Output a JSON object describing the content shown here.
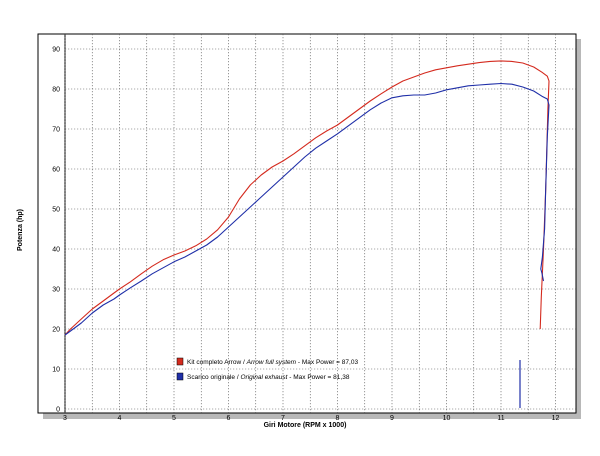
{
  "chart_data": {
    "type": "line",
    "xlabel": "Giri Motore (RPM x 1000)",
    "ylabel": "Potenza (hp)",
    "xlim": [
      2.9,
      12.0
    ],
    "ylim": [
      0,
      92
    ],
    "x_ticks": [
      "3",
      "4",
      "5",
      "6",
      "7",
      "8",
      "9",
      "10",
      "11",
      "12"
    ],
    "y_ticks": [
      "0",
      "10",
      "20",
      "30",
      "40",
      "50",
      "60",
      "70",
      "80",
      "90"
    ],
    "x_grid_values": [
      3,
      3.5,
      4,
      4.5,
      5,
      5.5,
      6,
      6.5,
      7,
      7.5,
      8,
      8.5,
      9,
      9.5,
      10,
      10.5,
      11,
      11.5,
      12
    ],
    "y_grid_values": [
      0,
      10,
      20,
      30,
      40,
      50,
      60,
      70,
      80,
      90
    ],
    "grid": true,
    "legend_position": "bottom-center",
    "series": [
      {
        "name": "Kit completo Arrow / Arrow full system - Max Power = 87,03",
        "legend": {
          "plain1": "Kit completo Arrow / ",
          "italic": "Arrow full system",
          "plain2": " - Max Power = 87,03"
        },
        "color": "#d42a1e",
        "x": [
          3.0,
          3.1,
          3.3,
          3.5,
          3.7,
          3.9,
          4.0,
          4.2,
          4.4,
          4.6,
          4.8,
          5.0,
          5.2,
          5.4,
          5.6,
          5.8,
          6.0,
          6.2,
          6.4,
          6.6,
          6.8,
          7.0,
          7.2,
          7.4,
          7.6,
          7.8,
          8.0,
          8.2,
          8.4,
          8.6,
          8.8,
          9.0,
          9.2,
          9.4,
          9.6,
          9.8,
          10.0,
          10.2,
          10.4,
          10.6,
          10.8,
          11.0,
          11.2,
          11.4,
          11.6,
          11.75,
          11.85,
          11.88,
          11.86,
          11.82,
          11.78,
          11.74,
          11.72
        ],
        "y": [
          18.5,
          20.0,
          22.5,
          25.0,
          27.0,
          29.0,
          30.0,
          31.8,
          33.8,
          35.7,
          37.3,
          38.5,
          39.5,
          40.8,
          42.5,
          44.8,
          48.0,
          52.5,
          56.0,
          58.5,
          60.5,
          62.0,
          63.8,
          65.8,
          67.8,
          69.5,
          71.0,
          73.0,
          75.0,
          77.0,
          78.8,
          80.5,
          82.0,
          83.0,
          84.0,
          84.8,
          85.3,
          85.8,
          86.2,
          86.6,
          86.9,
          87.03,
          86.9,
          86.5,
          85.5,
          84.2,
          83.2,
          82.0,
          75.0,
          55.0,
          40.0,
          28.0,
          20.0
        ]
      },
      {
        "name": "Scarico originale / Original exhaust - Max Power = 81,38",
        "legend": {
          "plain1": "Scarico originale / ",
          "italic": "Original exhaust",
          "plain2": " - Max Power = 81,38"
        },
        "color": "#1f2fa8",
        "x": [
          3.0,
          3.1,
          3.3,
          3.5,
          3.7,
          3.9,
          4.0,
          4.2,
          4.4,
          4.6,
          4.8,
          5.0,
          5.2,
          5.4,
          5.6,
          5.8,
          6.0,
          6.2,
          6.4,
          6.6,
          6.8,
          7.0,
          7.2,
          7.4,
          7.6,
          7.8,
          8.0,
          8.2,
          8.4,
          8.6,
          8.8,
          9.0,
          9.2,
          9.4,
          9.6,
          9.8,
          10.0,
          10.2,
          10.4,
          10.6,
          10.8,
          11.0,
          11.2,
          11.4,
          11.6,
          11.75,
          11.85,
          11.88,
          11.85,
          11.82,
          11.8,
          11.76,
          11.73,
          11.75,
          11.78
        ],
        "y": [
          18.5,
          19.5,
          21.5,
          24.0,
          26.0,
          27.5,
          28.5,
          30.3,
          32.0,
          33.8,
          35.3,
          36.8,
          38.0,
          39.5,
          41.0,
          43.0,
          45.5,
          48.0,
          50.5,
          53.0,
          55.5,
          58.0,
          60.5,
          63.0,
          65.2,
          67.0,
          68.8,
          70.8,
          72.8,
          74.8,
          76.5,
          77.8,
          78.3,
          78.5,
          78.5,
          79.0,
          79.8,
          80.3,
          80.8,
          81.0,
          81.2,
          81.38,
          81.2,
          80.5,
          79.5,
          78.2,
          77.5,
          76.0,
          68.0,
          55.0,
          45.0,
          38.0,
          35.0,
          34.0,
          32.0
        ]
      }
    ]
  }
}
